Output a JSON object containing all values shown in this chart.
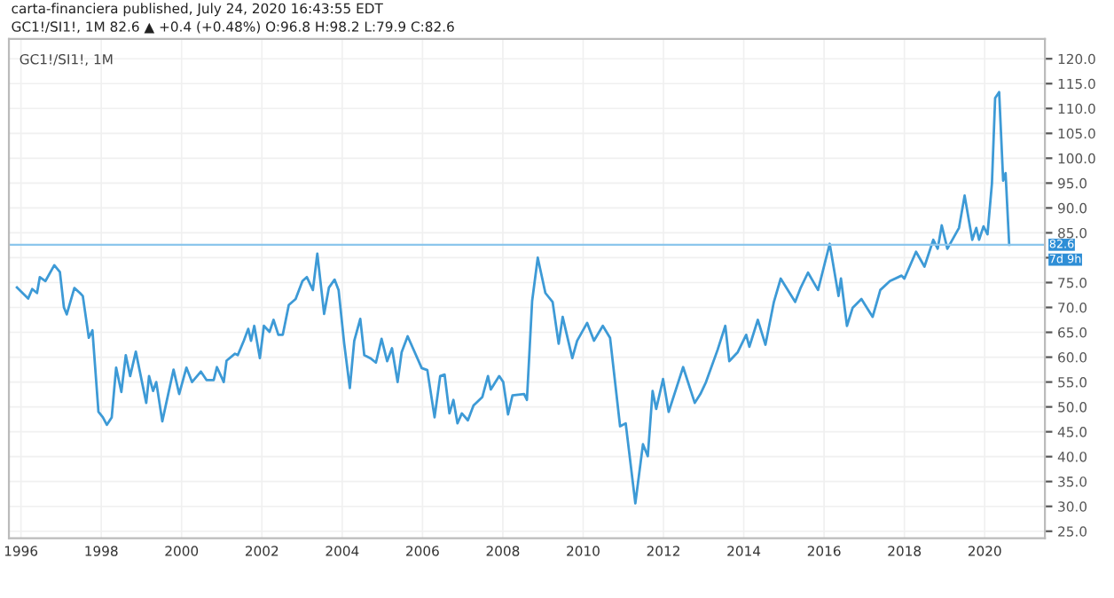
{
  "chart_data": {
    "type": "line",
    "title": "GC1!/SI1!, 1M",
    "subtitle": "carta-financiera published, July 24, 2020 16:43:55 EDT\nGC1!/SI1!, 1M 82.6 ▲ +0.4 (+0.48%) O:96.8 H:98.2 L:79.9 C:82.6",
    "series": [
      {
        "color": "#3d9ad6",
        "x": [
          1995.9,
          1996.18,
          1996.28,
          1996.4,
          1996.47,
          1996.61,
          1996.83,
          1996.97,
          1997.07,
          1997.14,
          1997.33,
          1997.47,
          1997.54,
          1997.69,
          1997.78,
          1997.93,
          1998.04,
          1998.14,
          1998.26,
          1998.37,
          1998.5,
          1998.61,
          1998.72,
          1998.86,
          1999.12,
          1999.19,
          1999.29,
          1999.37,
          1999.52,
          1999.8,
          1999.94,
          2000.12,
          2000.26,
          2000.48,
          2000.62,
          2000.8,
          2000.88,
          2001.05,
          2001.12,
          2001.33,
          2001.4,
          2001.55,
          2001.66,
          2001.73,
          2001.81,
          2001.95,
          2002.05,
          2002.19,
          2002.29,
          2002.41,
          2002.52,
          2002.67,
          2002.84,
          2003.01,
          2003.12,
          2003.27,
          2003.38,
          2003.55,
          2003.67,
          2003.81,
          2003.91,
          2004.05,
          2004.19,
          2004.3,
          2004.45,
          2004.55,
          2004.7,
          2004.84,
          2004.98,
          2005.12,
          2005.24,
          2005.38,
          2005.48,
          2005.63,
          2005.98,
          2006.12,
          2006.3,
          2006.44,
          2006.55,
          2006.67,
          2006.77,
          2006.87,
          2006.98,
          2007.13,
          2007.27,
          2007.49,
          2007.63,
          2007.7,
          2007.91,
          2008.01,
          2008.13,
          2008.24,
          2008.53,
          2008.6,
          2008.73,
          2008.87,
          2009.06,
          2009.24,
          2009.39,
          2009.49,
          2009.73,
          2009.85,
          2010.1,
          2010.27,
          2010.49,
          2010.67,
          2010.92,
          2011.06,
          2011.3,
          2011.49,
          2011.61,
          2011.73,
          2011.82,
          2011.99,
          2012.13,
          2012.49,
          2012.78,
          2012.92,
          2013.06,
          2013.35,
          2013.54,
          2013.64,
          2013.85,
          2014.06,
          2014.14,
          2014.35,
          2014.54,
          2014.75,
          2014.92,
          2015.28,
          2015.42,
          2015.6,
          2015.85,
          2016.14,
          2016.36,
          2016.42,
          2016.57,
          2016.71,
          2016.93,
          2017.21,
          2017.4,
          2017.64,
          2017.93,
          2018.0,
          2018.29,
          2018.5,
          2018.72,
          2018.83,
          2018.93,
          2019.07,
          2019.36,
          2019.5,
          2019.69,
          2019.79,
          2019.86,
          2019.97,
          2020.07,
          2020.18,
          2020.26,
          2020.36,
          2020.46,
          2020.52,
          2020.61
        ],
        "values": [
          74.0,
          71.8,
          73.7,
          72.9,
          76.1,
          75.3,
          78.5,
          77.1,
          70.0,
          68.6,
          73.9,
          72.9,
          72.3,
          63.9,
          65.4,
          49.0,
          47.9,
          46.4,
          47.9,
          57.9,
          53.0,
          60.4,
          56.2,
          61.1,
          50.8,
          56.2,
          53.2,
          55.0,
          47.1,
          57.5,
          52.6,
          57.9,
          55.0,
          57.1,
          55.4,
          55.4,
          58.0,
          55.0,
          59.3,
          60.7,
          60.4,
          63.3,
          65.7,
          63.3,
          66.3,
          59.8,
          66.3,
          65.1,
          67.5,
          64.5,
          64.5,
          70.5,
          71.7,
          75.3,
          76.1,
          73.5,
          80.8,
          68.7,
          74.0,
          75.6,
          73.5,
          62.7,
          53.8,
          63.3,
          67.7,
          60.4,
          59.8,
          58.9,
          63.7,
          59.2,
          61.8,
          55.0,
          61.0,
          64.2,
          57.8,
          57.4,
          47.9,
          56.2,
          56.5,
          48.7,
          51.4,
          46.7,
          48.7,
          47.3,
          50.3,
          52.0,
          56.2,
          53.5,
          56.2,
          55.0,
          48.5,
          52.3,
          52.6,
          51.4,
          71.3,
          80.0,
          72.9,
          71.1,
          62.7,
          68.1,
          59.8,
          63.3,
          66.9,
          63.3,
          66.3,
          63.9,
          46.1,
          46.7,
          30.6,
          42.5,
          40.1,
          53.2,
          49.6,
          55.6,
          49.0,
          58.0,
          50.8,
          52.6,
          55.0,
          61.5,
          66.3,
          59.2,
          61.0,
          64.5,
          62.1,
          67.5,
          62.5,
          71.1,
          75.8,
          71.1,
          74.0,
          77.0,
          73.5,
          82.8,
          72.3,
          75.8,
          66.3,
          69.9,
          71.7,
          68.1,
          73.5,
          75.3,
          76.4,
          75.8,
          81.2,
          78.2,
          83.6,
          81.8,
          86.5,
          81.8,
          86.0,
          92.5,
          83.6,
          86.0,
          83.6,
          86.3,
          84.7,
          94.9,
          112.1,
          113.3,
          95.5,
          97.0,
          82.6
        ]
      }
    ],
    "xlim": [
      1995.7,
      2021.5
    ],
    "xticks": [
      {
        "value": 1996,
        "label": "1996"
      },
      1998,
      2000,
      2002,
      2004,
      2006,
      2008,
      2010,
      2012,
      2014,
      2016,
      2018,
      2020
    ],
    "ylim": [
      23.6,
      124
    ],
    "yticks": [
      {
        "value": 25,
        "label": "25.0"
      },
      {
        "value": 30,
        "label": "30.0"
      },
      {
        "value": 35,
        "label": "35.0"
      },
      {
        "value": 40,
        "label": "40.0"
      },
      {
        "value": 45,
        "label": "45.0"
      },
      {
        "value": 50,
        "label": "50.0"
      },
      {
        "value": 55,
        "label": "55.0"
      },
      {
        "value": 60,
        "label": "60.0"
      },
      {
        "value": 65,
        "label": "65.0"
      },
      {
        "value": 70,
        "label": "70.0"
      },
      {
        "value": 75,
        "label": "75.0"
      },
      {
        "value": 80,
        "label": null
      },
      {
        "value": 85,
        "label": "85.0"
      },
      {
        "value": 90,
        "label": "90.0"
      },
      {
        "value": 95,
        "label": "95.0"
      },
      {
        "value": 100,
        "label": "100.0"
      },
      {
        "value": 105,
        "label": "105.0"
      },
      {
        "value": 110,
        "label": "110.0"
      },
      {
        "value": 115,
        "label": "115.0"
      },
      {
        "value": 120,
        "label": "120.0"
      }
    ],
    "ref_lines": [
      {
        "axis": "y",
        "value": 82.6,
        "label": "82.6",
        "color": "#8cc6ec"
      }
    ],
    "annotations": [
      "7d 9h"
    ],
    "grid": true,
    "marker": "none",
    "line_style": "solid"
  }
}
